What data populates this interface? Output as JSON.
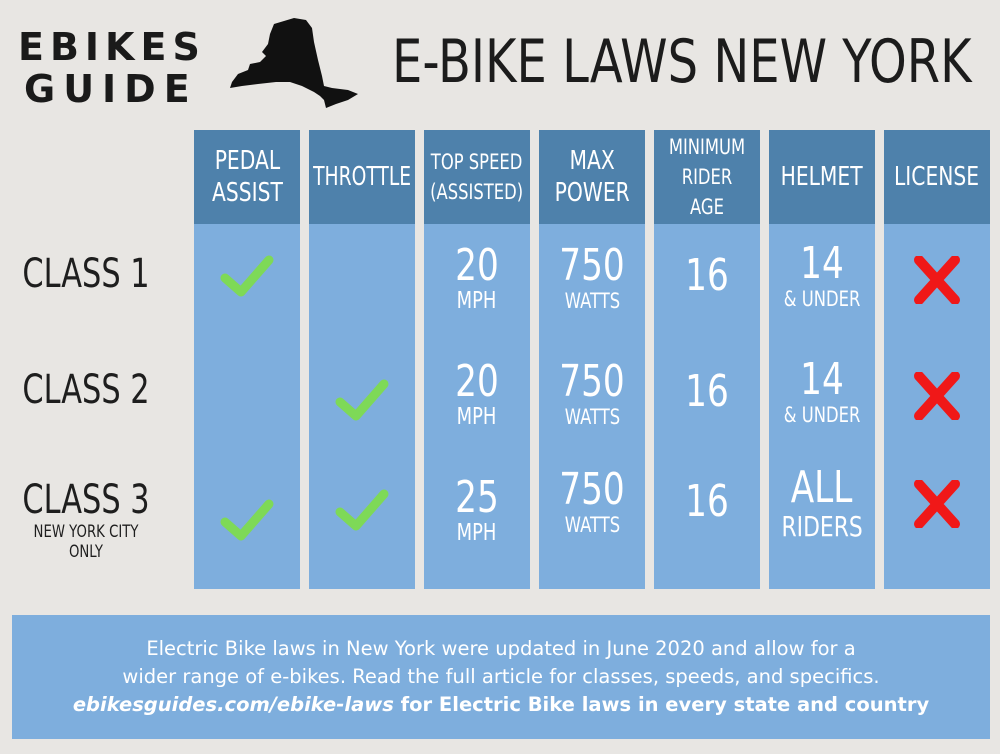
{
  "logo": {
    "line1": "EBIKES",
    "line2": "GUIDE"
  },
  "title": "E-BIKE LAWS NEW YORK",
  "columns": [
    {
      "key": "pedal_assist",
      "label": "PEDAL\nASSIST"
    },
    {
      "key": "throttle",
      "label": "THROTTLE"
    },
    {
      "key": "top_speed",
      "label": "TOP SPEED\n(ASSISTED)"
    },
    {
      "key": "max_power",
      "label": "MAX\nPOWER"
    },
    {
      "key": "min_age",
      "label": "MINIMUM\nRIDER AGE"
    },
    {
      "key": "helmet",
      "label": "HELMET"
    },
    {
      "key": "license",
      "label": "LICENSE"
    }
  ],
  "rows": [
    {
      "label": "CLASS 1",
      "sublabel": "",
      "pedal_assist": true,
      "throttle": false,
      "speed": "20",
      "speed_unit": "MPH",
      "power": "750",
      "power_unit": "WATTS",
      "age": "16",
      "helmet": "14",
      "helmet_unit": "& UNDER",
      "license": false
    },
    {
      "label": "CLASS 2",
      "sublabel": "",
      "pedal_assist": false,
      "throttle": true,
      "speed": "20",
      "speed_unit": "MPH",
      "power": "750",
      "power_unit": "WATTS",
      "age": "16",
      "helmet": "14",
      "helmet_unit": "& UNDER",
      "license": false
    },
    {
      "label": "CLASS 3",
      "sublabel": "NEW YORK CITY ONLY",
      "pedal_assist": true,
      "throttle": true,
      "speed": "25",
      "speed_unit": "MPH",
      "power": "750",
      "power_unit": "WATTS",
      "age": "16",
      "helmet": "ALL",
      "helmet_unit": "RIDERS",
      "license": false
    }
  ],
  "footer": {
    "line1": "Electric Bike laws in New York were updated in June 2020 and allow for a",
    "line2": "wider range of e-bikes. Read the full article for classes, speeds, and specifics.",
    "link": "ebikesguides.com/ebike-laws",
    "line3_rest": " for Electric Bike laws in every state and country"
  },
  "colors": {
    "background": "#e8e6e3",
    "header": "#4e81ab",
    "cell": "#7eaedd",
    "check": "#7ed957",
    "cross": "#f01818"
  }
}
